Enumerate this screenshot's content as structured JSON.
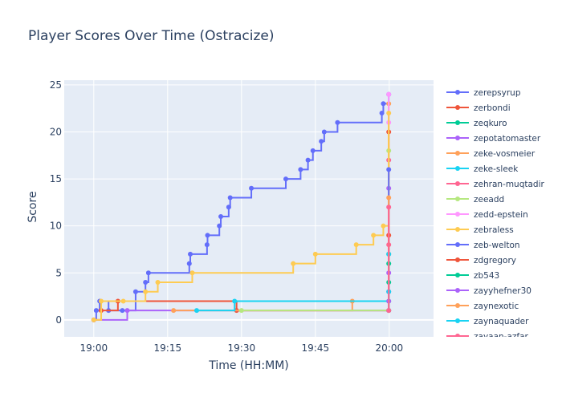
{
  "chart_data": {
    "type": "line",
    "title": "Player Scores Over Time (Ostracize)",
    "xlabel": "Time (HH:MM)",
    "ylabel": "Score",
    "x_unit": "minutes after 19:00",
    "xlim": [
      -6,
      69
    ],
    "ylim": [
      -1.8,
      25.5
    ],
    "x_ticks": [
      0,
      15,
      30,
      45,
      60
    ],
    "x_tick_labels": [
      "19:00",
      "19:15",
      "19:30",
      "19:45",
      "20:00"
    ],
    "y_ticks": [
      0,
      5,
      10,
      15,
      20,
      25
    ],
    "y_tick_labels": [
      "0",
      "5",
      "10",
      "15",
      "20",
      "25"
    ],
    "grid": true,
    "line_shape": "step",
    "legend_placement": "right",
    "series": [
      {
        "name": "zerepsyrup",
        "color": "#636efa",
        "x": [
          0,
          0.5,
          1.2,
          3,
          5.8,
          8.5,
          10.5,
          11.1,
          19.4,
          19.6,
          23,
          23.1,
          25.5,
          25.8,
          27.4,
          27.7,
          32,
          39,
          42,
          43.5,
          44.5,
          46.2,
          46.8,
          49.5,
          58.5,
          58.8,
          59.9
        ],
        "y": [
          0,
          1,
          2,
          1,
          1,
          3,
          4,
          5,
          6,
          7,
          8,
          9,
          10,
          11,
          12,
          13,
          14,
          15,
          16,
          17,
          18,
          19,
          20,
          21,
          22,
          23,
          24
        ]
      },
      {
        "name": "zerbondi",
        "color": "#ef553b",
        "x": [
          0,
          1.5,
          4.9,
          29,
          59.9
        ],
        "y": [
          0,
          1,
          2,
          1,
          20
        ]
      },
      {
        "name": "zeqkuro",
        "color": "#00cc96",
        "x": [
          59.9,
          59.9,
          59.9
        ],
        "y": [
          1,
          4,
          7
        ]
      },
      {
        "name": "zepotatomaster",
        "color": "#ab63fa",
        "x": [
          0,
          6.8,
          59.9
        ],
        "y": [
          0,
          1,
          14
        ]
      },
      {
        "name": "zeke-vosmeier",
        "color": "#ffa15a",
        "x": [
          16.2,
          52.5,
          59.9
        ],
        "y": [
          1,
          2,
          23
        ]
      },
      {
        "name": "zeke-sleek",
        "color": "#19d3f3",
        "x": [
          20.9,
          28.6,
          59.9
        ],
        "y": [
          1,
          2,
          7
        ]
      },
      {
        "name": "zehran-muqtadir",
        "color": "#ff6692",
        "x": [
          59.9,
          59.9
        ],
        "y": [
          8,
          17
        ]
      },
      {
        "name": "zeeadd",
        "color": "#b6e880",
        "x": [
          30,
          59.9
        ],
        "y": [
          1,
          18
        ]
      },
      {
        "name": "zedd-epstein",
        "color": "#ff97ff",
        "x": [
          59.9,
          59.9
        ],
        "y": [
          21,
          24
        ]
      },
      {
        "name": "zebraless",
        "color": "#fecb52",
        "x": [
          0,
          1.5,
          6,
          10.5,
          13,
          20,
          40.5,
          45,
          53.3,
          56.8,
          58.8,
          59.9
        ],
        "y": [
          0,
          2,
          2,
          3,
          4,
          5,
          6,
          7,
          8,
          9,
          10,
          22
        ]
      },
      {
        "name": "zeb-welton",
        "color": "#636efa",
        "x": [
          59.9,
          59.9
        ],
        "y": [
          3,
          16
        ]
      },
      {
        "name": "zdgregory",
        "color": "#ef553b",
        "x": [
          59.9,
          59.9
        ],
        "y": [
          1,
          9
        ]
      },
      {
        "name": "zb543",
        "color": "#00cc96",
        "x": [
          59.9,
          59.9
        ],
        "y": [
          2,
          6
        ]
      },
      {
        "name": "zayyhefner30",
        "color": "#ab63fa",
        "x": [
          59.9,
          59.9
        ],
        "y": [
          2,
          5
        ]
      },
      {
        "name": "zaynexotic",
        "color": "#ffa15a",
        "x": [
          59.9,
          59.9
        ],
        "y": [
          1,
          13
        ]
      },
      {
        "name": "zaynaquader",
        "color": "#19d3f3",
        "x": [
          59.9,
          59.9
        ],
        "y": [
          1,
          3
        ]
      },
      {
        "name": "zayaan-azfar",
        "color": "#ff6692",
        "x": [
          59.9,
          59.9
        ],
        "y": [
          1,
          12
        ]
      }
    ]
  }
}
